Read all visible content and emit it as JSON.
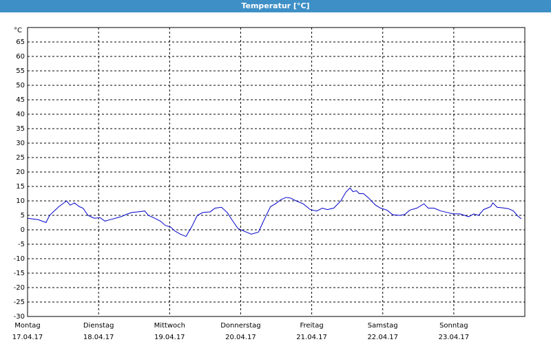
{
  "chart_data": {
    "type": "line",
    "title": "Temperatur [°C]",
    "y_unit": "°C",
    "xlim": [
      0,
      7
    ],
    "xticks": [
      {
        "value": 0,
        "label": "Montag",
        "date": "17.04.17"
      },
      {
        "value": 1,
        "label": "Dienstag",
        "date": "18.04.17"
      },
      {
        "value": 2,
        "label": "Mittwoch",
        "date": "19.04.17"
      },
      {
        "value": 3,
        "label": "Donnerstag",
        "date": "20.04.17"
      },
      {
        "value": 4,
        "label": "Freitag",
        "date": "21.04.17"
      },
      {
        "value": 5,
        "label": "Samstag",
        "date": "22.04.17"
      },
      {
        "value": 6,
        "label": "Sonntag",
        "date": "23.04.17"
      }
    ],
    "ylim": [
      -30,
      70
    ],
    "yticks": [
      -30,
      -25,
      -20,
      -15,
      -10,
      -5,
      0,
      5,
      10,
      15,
      20,
      25,
      30,
      35,
      40,
      45,
      50,
      55,
      60,
      65
    ],
    "grid": true,
    "series": [
      {
        "name": "Temperatur",
        "color": "#0000cc",
        "x": [
          0,
          0.15,
          0.26,
          0.31,
          0.44,
          0.55,
          0.6,
          0.66,
          0.73,
          0.78,
          0.85,
          0.94,
          1.02,
          1.09,
          1.16,
          1.31,
          1.41,
          1.47,
          1.55,
          1.65,
          1.7,
          1.79,
          1.87,
          1.94,
          2.01,
          2.08,
          2.15,
          2.23,
          2.31,
          2.39,
          2.47,
          2.57,
          2.64,
          2.73,
          2.81,
          2.89,
          2.96,
          3.05,
          3.15,
          3.25,
          3.34,
          3.42,
          3.49,
          3.57,
          3.64,
          3.7,
          3.78,
          3.88,
          3.98,
          4.07,
          4.15,
          4.22,
          4.31,
          4.41,
          4.48,
          4.54,
          4.58,
          4.63,
          4.67,
          4.73,
          4.8,
          4.9,
          4.97,
          5.06,
          5.14,
          5.24,
          5.31,
          5.38,
          5.48,
          5.58,
          5.64,
          5.72,
          5.82,
          5.91,
          5.99,
          6.09,
          6.21,
          6.28,
          6.35,
          6.42,
          6.52,
          6.55,
          6.61,
          6.69,
          6.77,
          6.84,
          6.9,
          6.95
        ],
        "values": [
          4,
          3.5,
          2.5,
          5,
          8,
          10,
          8.5,
          9.3,
          8,
          7.5,
          5,
          4,
          4.2,
          3,
          3.5,
          4.5,
          5.5,
          6,
          6.2,
          6.5,
          5,
          4,
          3,
          1.5,
          1,
          -0.5,
          -1.5,
          -2.3,
          1,
          5,
          6,
          6.2,
          7.5,
          7.8,
          6,
          3,
          0.5,
          -0.5,
          -1.5,
          -0.8,
          4,
          8,
          9,
          10.5,
          11.2,
          11,
          10,
          9,
          7,
          6.5,
          7.5,
          7,
          7.5,
          10,
          13,
          14.5,
          13.2,
          13.5,
          12.5,
          12.5,
          11,
          8.5,
          7.5,
          6.8,
          5.2,
          5,
          5.3,
          6.8,
          7.5,
          9,
          7.5,
          7.5,
          6.5,
          6,
          5.5,
          5.5,
          4.5,
          5.5,
          5,
          7,
          8,
          9.3,
          7.8,
          7.6,
          7.3,
          6.5,
          4.8,
          3.8
        ]
      }
    ]
  }
}
